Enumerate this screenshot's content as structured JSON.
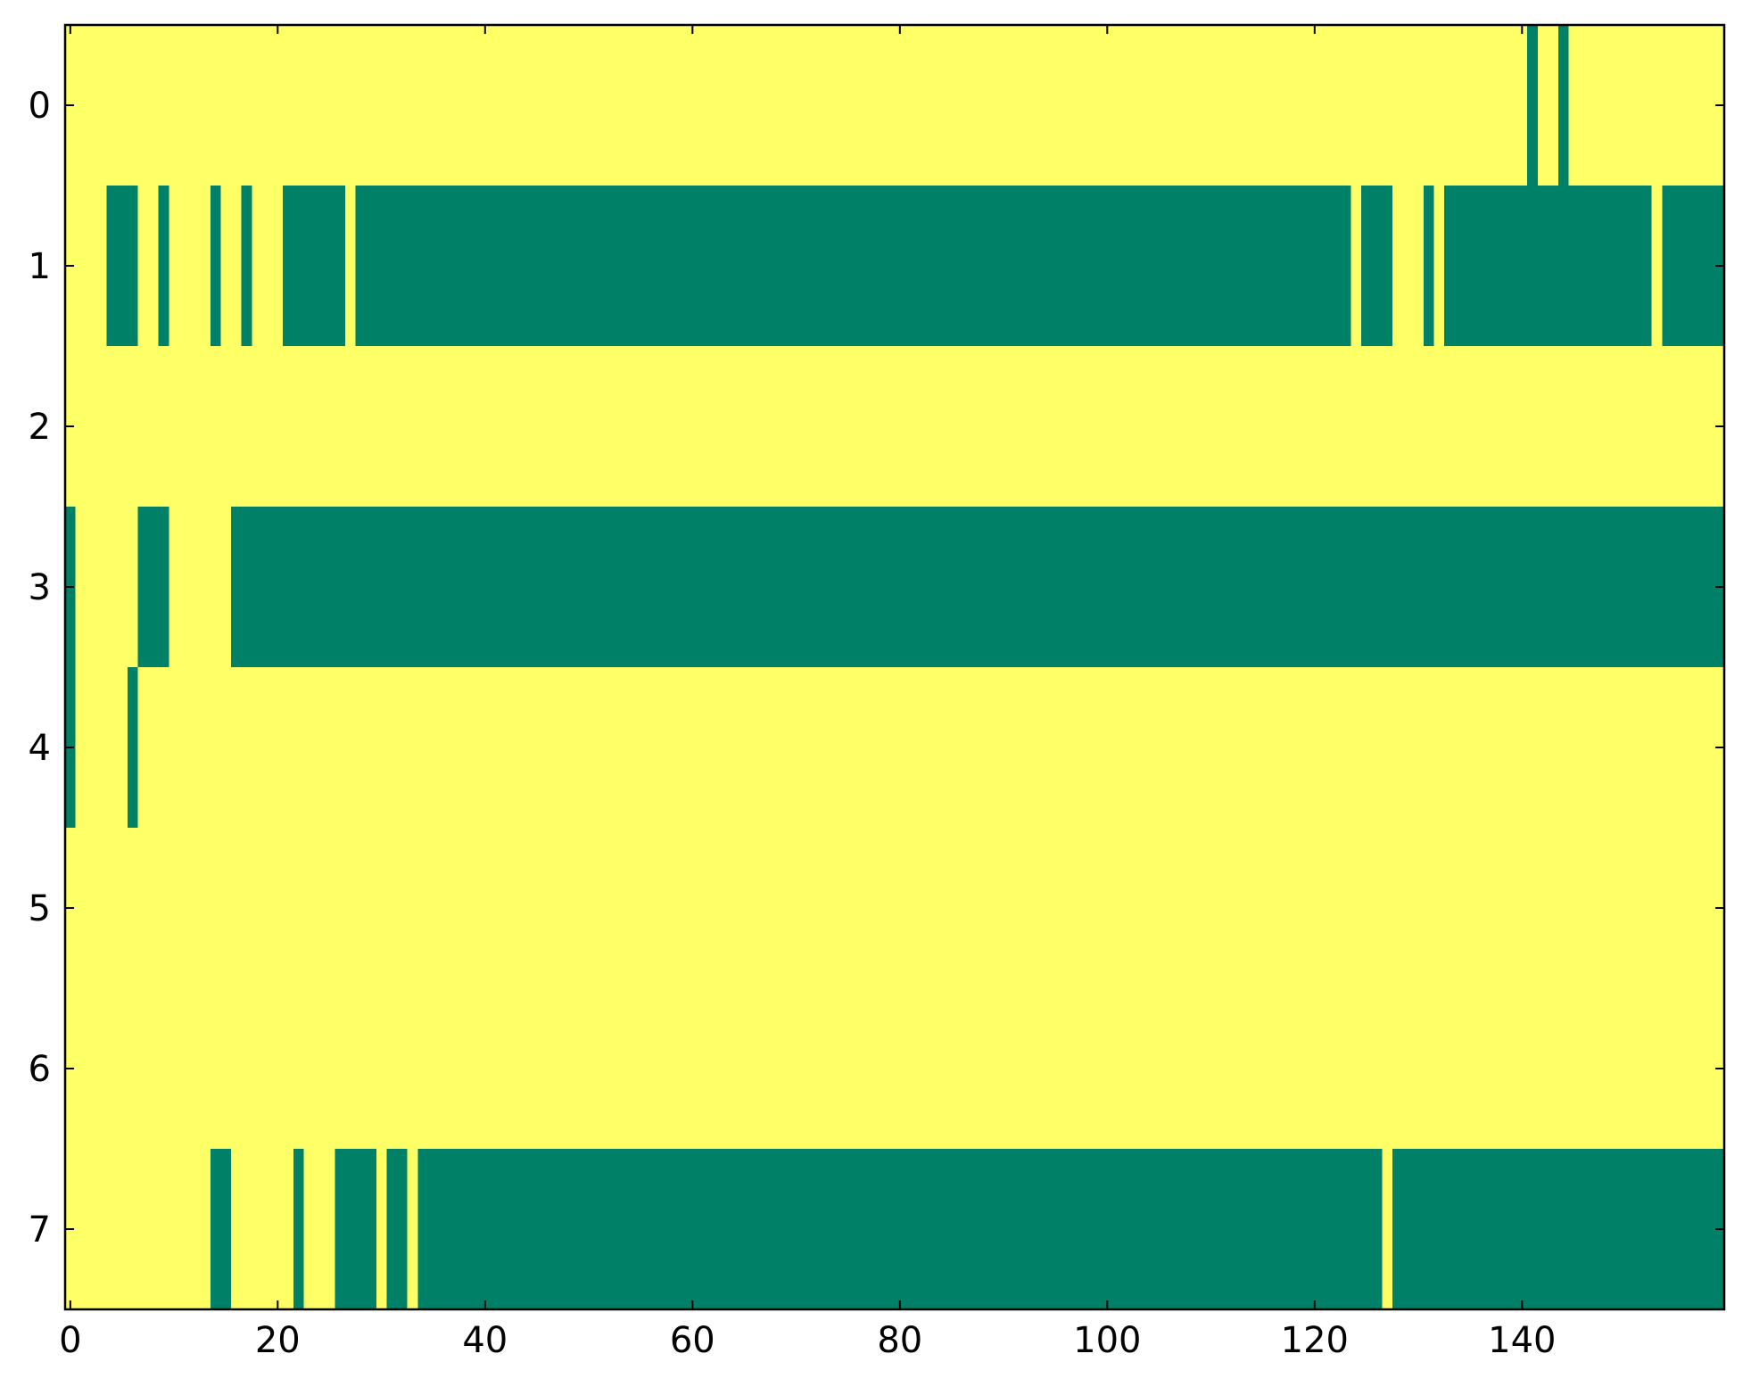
{
  "chart_data": {
    "type": "heatmap",
    "xlim": [
      -0.5,
      159.5
    ],
    "ylim": [
      7.5,
      -0.5
    ],
    "xticks": [
      0,
      20,
      40,
      60,
      80,
      100,
      120,
      140
    ],
    "yticks": [
      0,
      1,
      2,
      3,
      4,
      5,
      6,
      7
    ],
    "colors": [
      "#ffff66",
      "#008066"
    ],
    "matrix": [
      [
        0,
        0,
        0,
        0,
        0,
        0,
        0,
        0,
        0,
        0,
        0,
        0,
        0,
        0,
        0,
        0,
        0,
        0,
        0,
        0,
        0,
        0,
        0,
        0,
        0,
        0,
        0,
        0,
        0,
        0,
        0,
        0,
        0,
        0,
        0,
        0,
        0,
        0,
        0,
        0,
        0,
        0,
        0,
        0,
        0,
        0,
        0,
        0,
        0,
        0,
        0,
        0,
        0,
        0,
        0,
        0,
        0,
        0,
        0,
        0,
        0,
        0,
        0,
        0,
        0,
        0,
        0,
        0,
        0,
        0,
        0,
        0,
        0,
        0,
        0,
        0,
        0,
        0,
        0,
        0,
        0,
        0,
        0,
        0,
        0,
        0,
        0,
        0,
        0,
        0,
        0,
        0,
        0,
        0,
        0,
        0,
        0,
        0,
        0,
        0,
        0,
        0,
        0,
        0,
        0,
        0,
        0,
        0,
        0,
        0,
        0,
        0,
        0,
        0,
        0,
        0,
        0,
        0,
        0,
        0,
        0,
        0,
        0,
        0,
        0,
        0,
        0,
        0,
        0,
        0,
        0,
        0,
        0,
        0,
        0,
        0,
        0,
        0,
        0,
        0,
        0,
        1,
        0,
        0,
        1,
        0,
        0,
        0,
        0,
        0,
        0,
        0,
        0,
        0,
        0,
        0,
        0,
        0,
        0,
        0
      ],
      [
        0,
        0,
        0,
        0,
        1,
        1,
        1,
        0,
        0,
        1,
        0,
        0,
        0,
        0,
        1,
        0,
        0,
        1,
        0,
        0,
        0,
        1,
        1,
        1,
        1,
        1,
        1,
        0,
        1,
        1,
        1,
        1,
        1,
        1,
        1,
        1,
        1,
        1,
        1,
        1,
        1,
        1,
        1,
        1,
        1,
        1,
        1,
        1,
        1,
        1,
        1,
        1,
        1,
        1,
        1,
        1,
        1,
        1,
        1,
        1,
        1,
        1,
        1,
        1,
        1,
        1,
        1,
        1,
        1,
        1,
        1,
        1,
        1,
        1,
        1,
        1,
        1,
        1,
        1,
        1,
        1,
        1,
        1,
        1,
        1,
        1,
        1,
        1,
        1,
        1,
        1,
        1,
        1,
        1,
        1,
        1,
        1,
        1,
        1,
        1,
        1,
        1,
        1,
        1,
        1,
        1,
        1,
        1,
        1,
        1,
        1,
        1,
        1,
        1,
        1,
        1,
        1,
        1,
        1,
        1,
        1,
        1,
        1,
        1,
        0,
        1,
        1,
        1,
        0,
        0,
        0,
        1,
        0,
        1,
        1,
        1,
        1,
        1,
        1,
        1,
        1,
        1,
        1,
        1,
        1,
        1,
        1,
        1,
        1,
        1,
        1,
        1,
        1,
        0,
        1,
        1,
        1,
        1,
        1,
        1
      ],
      [
        0,
        0,
        0,
        0,
        0,
        0,
        0,
        0,
        0,
        0,
        0,
        0,
        0,
        0,
        0,
        0,
        0,
        0,
        0,
        0,
        0,
        0,
        0,
        0,
        0,
        0,
        0,
        0,
        0,
        0,
        0,
        0,
        0,
        0,
        0,
        0,
        0,
        0,
        0,
        0,
        0,
        0,
        0,
        0,
        0,
        0,
        0,
        0,
        0,
        0,
        0,
        0,
        0,
        0,
        0,
        0,
        0,
        0,
        0,
        0,
        0,
        0,
        0,
        0,
        0,
        0,
        0,
        0,
        0,
        0,
        0,
        0,
        0,
        0,
        0,
        0,
        0,
        0,
        0,
        0,
        0,
        0,
        0,
        0,
        0,
        0,
        0,
        0,
        0,
        0,
        0,
        0,
        0,
        0,
        0,
        0,
        0,
        0,
        0,
        0,
        0,
        0,
        0,
        0,
        0,
        0,
        0,
        0,
        0,
        0,
        0,
        0,
        0,
        0,
        0,
        0,
        0,
        0,
        0,
        0,
        0,
        0,
        0,
        0,
        0,
        0,
        0,
        0,
        0,
        0,
        0,
        0,
        0,
        0,
        0,
        0,
        0,
        0,
        0,
        0,
        0,
        0,
        0,
        0,
        0,
        0,
        0,
        0,
        0,
        0,
        0,
        0,
        0,
        0,
        0,
        0,
        0,
        0,
        0,
        0
      ],
      [
        1,
        0,
        0,
        0,
        0,
        0,
        0,
        1,
        1,
        1,
        0,
        0,
        0,
        0,
        0,
        0,
        1,
        1,
        1,
        1,
        1,
        1,
        1,
        1,
        1,
        1,
        1,
        1,
        1,
        1,
        1,
        1,
        1,
        1,
        1,
        1,
        1,
        1,
        1,
        1,
        1,
        1,
        1,
        1,
        1,
        1,
        1,
        1,
        1,
        1,
        1,
        1,
        1,
        1,
        1,
        1,
        1,
        1,
        1,
        1,
        1,
        1,
        1,
        1,
        1,
        1,
        1,
        1,
        1,
        1,
        1,
        1,
        1,
        1,
        1,
        1,
        1,
        1,
        1,
        1,
        1,
        1,
        1,
        1,
        1,
        1,
        1,
        1,
        1,
        1,
        1,
        1,
        1,
        1,
        1,
        1,
        1,
        1,
        1,
        1,
        1,
        1,
        1,
        1,
        1,
        1,
        1,
        1,
        1,
        1,
        1,
        1,
        1,
        1,
        1,
        1,
        1,
        1,
        1,
        1,
        1,
        1,
        1,
        1,
        1,
        1,
        1,
        1,
        1,
        1,
        1,
        1,
        1,
        1,
        1,
        1,
        1,
        1,
        1,
        1,
        1,
        1,
        1,
        1,
        1,
        1,
        1,
        1,
        1,
        1,
        1,
        1,
        1,
        1,
        1,
        1,
        1,
        1,
        1,
        1
      ],
      [
        1,
        0,
        0,
        0,
        0,
        0,
        1,
        0,
        0,
        0,
        0,
        0,
        0,
        0,
        0,
        0,
        0,
        0,
        0,
        0,
        0,
        0,
        0,
        0,
        0,
        0,
        0,
        0,
        0,
        0,
        0,
        0,
        0,
        0,
        0,
        0,
        0,
        0,
        0,
        0,
        0,
        0,
        0,
        0,
        0,
        0,
        0,
        0,
        0,
        0,
        0,
        0,
        0,
        0,
        0,
        0,
        0,
        0,
        0,
        0,
        0,
        0,
        0,
        0,
        0,
        0,
        0,
        0,
        0,
        0,
        0,
        0,
        0,
        0,
        0,
        0,
        0,
        0,
        0,
        0,
        0,
        0,
        0,
        0,
        0,
        0,
        0,
        0,
        0,
        0,
        0,
        0,
        0,
        0,
        0,
        0,
        0,
        0,
        0,
        0,
        0,
        0,
        0,
        0,
        0,
        0,
        0,
        0,
        0,
        0,
        0,
        0,
        0,
        0,
        0,
        0,
        0,
        0,
        0,
        0,
        0,
        0,
        0,
        0,
        0,
        0,
        0,
        0,
        0,
        0,
        0,
        0,
        0,
        0,
        0,
        0,
        0,
        0,
        0,
        0,
        0,
        0,
        0,
        0,
        0,
        0,
        0,
        0,
        0,
        0,
        0,
        0,
        0,
        0,
        0,
        0,
        0,
        0,
        0,
        0
      ],
      [
        0,
        0,
        0,
        0,
        0,
        0,
        0,
        0,
        0,
        0,
        0,
        0,
        0,
        0,
        0,
        0,
        0,
        0,
        0,
        0,
        0,
        0,
        0,
        0,
        0,
        0,
        0,
        0,
        0,
        0,
        0,
        0,
        0,
        0,
        0,
        0,
        0,
        0,
        0,
        0,
        0,
        0,
        0,
        0,
        0,
        0,
        0,
        0,
        0,
        0,
        0,
        0,
        0,
        0,
        0,
        0,
        0,
        0,
        0,
        0,
        0,
        0,
        0,
        0,
        0,
        0,
        0,
        0,
        0,
        0,
        0,
        0,
        0,
        0,
        0,
        0,
        0,
        0,
        0,
        0,
        0,
        0,
        0,
        0,
        0,
        0,
        0,
        0,
        0,
        0,
        0,
        0,
        0,
        0,
        0,
        0,
        0,
        0,
        0,
        0,
        0,
        0,
        0,
        0,
        0,
        0,
        0,
        0,
        0,
        0,
        0,
        0,
        0,
        0,
        0,
        0,
        0,
        0,
        0,
        0,
        0,
        0,
        0,
        0,
        0,
        0,
        0,
        0,
        0,
        0,
        0,
        0,
        0,
        0,
        0,
        0,
        0,
        0,
        0,
        0,
        0,
        0,
        0,
        0,
        0,
        0,
        0,
        0,
        0,
        0,
        0,
        0,
        0,
        0,
        0,
        0,
        0,
        0,
        0,
        0
      ],
      [
        0,
        0,
        0,
        0,
        0,
        0,
        0,
        0,
        0,
        0,
        0,
        0,
        0,
        0,
        0,
        0,
        0,
        0,
        0,
        0,
        0,
        0,
        0,
        0,
        0,
        0,
        0,
        0,
        0,
        0,
        0,
        0,
        0,
        0,
        0,
        0,
        0,
        0,
        0,
        0,
        0,
        0,
        0,
        0,
        0,
        0,
        0,
        0,
        0,
        0,
        0,
        0,
        0,
        0,
        0,
        0,
        0,
        0,
        0,
        0,
        0,
        0,
        0,
        0,
        0,
        0,
        0,
        0,
        0,
        0,
        0,
        0,
        0,
        0,
        0,
        0,
        0,
        0,
        0,
        0,
        0,
        0,
        0,
        0,
        0,
        0,
        0,
        0,
        0,
        0,
        0,
        0,
        0,
        0,
        0,
        0,
        0,
        0,
        0,
        0,
        0,
        0,
        0,
        0,
        0,
        0,
        0,
        0,
        0,
        0,
        0,
        0,
        0,
        0,
        0,
        0,
        0,
        0,
        0,
        0,
        0,
        0,
        0,
        0,
        0,
        0,
        0,
        0,
        0,
        0,
        0,
        0,
        0,
        0,
        0,
        0,
        0,
        0,
        0,
        0,
        0,
        0,
        0,
        0,
        0,
        0,
        0,
        0,
        0,
        0,
        0,
        0,
        0,
        0,
        0,
        0,
        0,
        0,
        0,
        0
      ],
      [
        0,
        0,
        0,
        0,
        0,
        0,
        0,
        0,
        0,
        0,
        0,
        0,
        0,
        0,
        1,
        1,
        0,
        0,
        0,
        0,
        0,
        0,
        1,
        0,
        0,
        0,
        1,
        1,
        1,
        1,
        0,
        1,
        1,
        0,
        1,
        1,
        1,
        1,
        1,
        1,
        1,
        1,
        1,
        1,
        1,
        1,
        1,
        1,
        1,
        1,
        1,
        1,
        1,
        1,
        1,
        1,
        1,
        1,
        1,
        1,
        1,
        1,
        1,
        1,
        1,
        1,
        1,
        1,
        1,
        1,
        1,
        1,
        1,
        1,
        1,
        1,
        1,
        1,
        1,
        1,
        1,
        1,
        1,
        1,
        1,
        1,
        1,
        1,
        1,
        1,
        1,
        1,
        1,
        1,
        1,
        1,
        1,
        1,
        1,
        1,
        1,
        1,
        1,
        1,
        1,
        1,
        1,
        1,
        1,
        1,
        1,
        1,
        1,
        1,
        1,
        1,
        1,
        1,
        1,
        1,
        1,
        1,
        1,
        1,
        1,
        1,
        1,
        0,
        1,
        1,
        1,
        1,
        1,
        1,
        1,
        1,
        1,
        1,
        1,
        1,
        1,
        1,
        1,
        1,
        1,
        1,
        1,
        1,
        1,
        1,
        1,
        1,
        1,
        1,
        1,
        1,
        1,
        1,
        1,
        1
      ]
    ]
  }
}
